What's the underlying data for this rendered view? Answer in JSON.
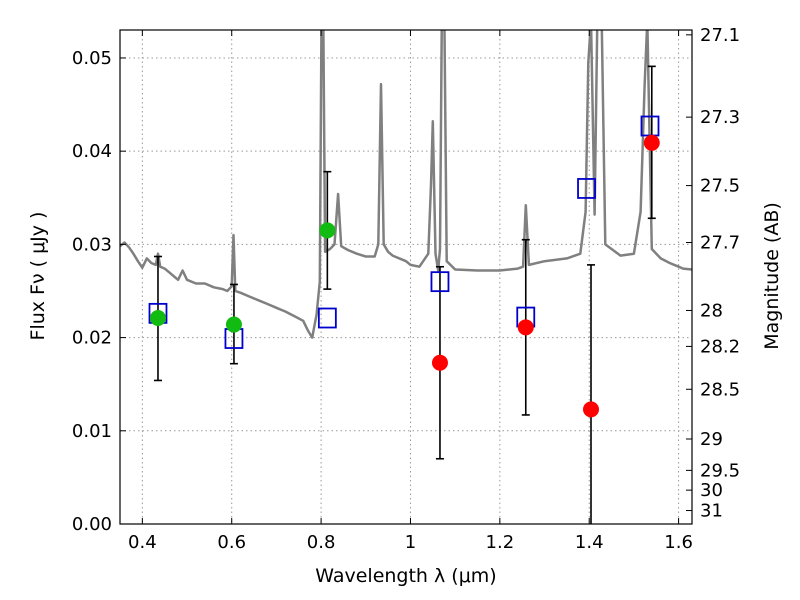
{
  "chart_data": {
    "type": "scatter",
    "xlabel": "Wavelength  λ (μm)",
    "ylabel": "Flux  Fν  ( μJy )",
    "y2label": "Magnitude (AB)",
    "xlim": [
      0.35,
      1.63
    ],
    "ylim": [
      0.0,
      0.053
    ],
    "grid": true,
    "x_ticks": [
      {
        "value": 0.4,
        "label": "0.4"
      },
      {
        "value": 0.6,
        "label": "0.6"
      },
      {
        "value": 0.8,
        "label": "0.8"
      },
      {
        "value": 1.0,
        "label": "1"
      },
      {
        "value": 1.2,
        "label": "1.2"
      },
      {
        "value": 1.4,
        "label": "1.4"
      },
      {
        "value": 1.6,
        "label": "1.6"
      }
    ],
    "y_ticks": [
      {
        "value": 0.0,
        "label": "0.00"
      },
      {
        "value": 0.01,
        "label": "0.01"
      },
      {
        "value": 0.02,
        "label": "0.02"
      },
      {
        "value": 0.03,
        "label": "0.03"
      },
      {
        "value": 0.04,
        "label": "0.04"
      },
      {
        "value": 0.05,
        "label": "0.05"
      }
    ],
    "y2_ticks": [
      {
        "value": 27.1,
        "label": "27.1"
      },
      {
        "value": 27.3,
        "label": "27.3"
      },
      {
        "value": 27.5,
        "label": "27.5"
      },
      {
        "value": 27.7,
        "label": "27.7"
      },
      {
        "value": 28.0,
        "label": "28"
      },
      {
        "value": 28.2,
        "label": "28.2"
      },
      {
        "value": 28.5,
        "label": "28.5"
      },
      {
        "value": 29.0,
        "label": "29"
      },
      {
        "value": 29.5,
        "label": "29.5"
      },
      {
        "value": 30.0,
        "label": "30"
      },
      {
        "value": 31.0,
        "label": "31"
      }
    ],
    "colors": {
      "model": "#808080",
      "green_points": "#11bb11",
      "red_points": "#ff0000",
      "model_boxes": "#0000cc",
      "errorbars": "#000000",
      "grid": "#999999"
    },
    "model_spectrum": [
      [
        0.35,
        0.0298
      ],
      [
        0.36,
        0.0302
      ],
      [
        0.37,
        0.0297
      ],
      [
        0.38,
        0.029
      ],
      [
        0.39,
        0.0282
      ],
      [
        0.4,
        0.0275
      ],
      [
        0.41,
        0.0285
      ],
      [
        0.42,
        0.028
      ],
      [
        0.43,
        0.0278
      ],
      [
        0.435,
        0.029
      ],
      [
        0.44,
        0.0276
      ],
      [
        0.45,
        0.0274
      ],
      [
        0.46,
        0.027
      ],
      [
        0.47,
        0.0266
      ],
      [
        0.48,
        0.0262
      ],
      [
        0.49,
        0.0272
      ],
      [
        0.5,
        0.0262
      ],
      [
        0.52,
        0.0258
      ],
      [
        0.54,
        0.0258
      ],
      [
        0.56,
        0.0254
      ],
      [
        0.58,
        0.0252
      ],
      [
        0.59,
        0.025
      ],
      [
        0.6,
        0.0255
      ],
      [
        0.604,
        0.031
      ],
      [
        0.608,
        0.025
      ],
      [
        0.62,
        0.0248
      ],
      [
        0.64,
        0.0244
      ],
      [
        0.66,
        0.024
      ],
      [
        0.68,
        0.0236
      ],
      [
        0.7,
        0.0232
      ],
      [
        0.72,
        0.0228
      ],
      [
        0.74,
        0.0223
      ],
      [
        0.76,
        0.0218
      ],
      [
        0.77,
        0.0208
      ],
      [
        0.78,
        0.02
      ],
      [
        0.79,
        0.0225
      ],
      [
        0.797,
        0.026
      ],
      [
        0.801,
        0.054
      ],
      [
        0.805,
        0.054
      ],
      [
        0.809,
        0.0292
      ],
      [
        0.82,
        0.0295
      ],
      [
        0.83,
        0.03
      ],
      [
        0.838,
        0.0354
      ],
      [
        0.845,
        0.0298
      ],
      [
        0.86,
        0.0294
      ],
      [
        0.88,
        0.029
      ],
      [
        0.9,
        0.0287
      ],
      [
        0.92,
        0.0287
      ],
      [
        0.928,
        0.03
      ],
      [
        0.934,
        0.0472
      ],
      [
        0.94,
        0.03
      ],
      [
        0.95,
        0.0292
      ],
      [
        0.96,
        0.0288
      ],
      [
        0.98,
        0.0284
      ],
      [
        0.99,
        0.0282
      ],
      [
        1.0,
        0.0278
      ],
      [
        1.02,
        0.0276
      ],
      [
        1.04,
        0.029
      ],
      [
        1.046,
        0.0364
      ],
      [
        1.05,
        0.0432
      ],
      [
        1.056,
        0.029
      ],
      [
        1.062,
        0.0272
      ],
      [
        1.066,
        0.0295
      ],
      [
        1.07,
        0.054
      ],
      [
        1.076,
        0.054
      ],
      [
        1.081,
        0.0282
      ],
      [
        1.1,
        0.0273
      ],
      [
        1.15,
        0.0272
      ],
      [
        1.2,
        0.0272
      ],
      [
        1.24,
        0.0274
      ],
      [
        1.252,
        0.0276
      ],
      [
        1.258,
        0.0342
      ],
      [
        1.265,
        0.0278
      ],
      [
        1.3,
        0.0282
      ],
      [
        1.35,
        0.0285
      ],
      [
        1.38,
        0.029
      ],
      [
        1.392,
        0.0335
      ],
      [
        1.398,
        0.0495
      ],
      [
        1.404,
        0.054
      ],
      [
        1.412,
        0.0332
      ],
      [
        1.418,
        0.054
      ],
      [
        1.428,
        0.054
      ],
      [
        1.436,
        0.03
      ],
      [
        1.47,
        0.0288
      ],
      [
        1.5,
        0.029
      ],
      [
        1.515,
        0.0335
      ],
      [
        1.524,
        0.047
      ],
      [
        1.53,
        0.054
      ],
      [
        1.536,
        0.0392
      ],
      [
        1.54,
        0.0295
      ],
      [
        1.56,
        0.0285
      ],
      [
        1.58,
        0.028
      ],
      [
        1.6,
        0.0276
      ],
      [
        1.61,
        0.0274
      ],
      [
        1.63,
        0.0273
      ]
    ],
    "green_points": [
      {
        "x": 0.435,
        "y": 0.0221,
        "err_low": 0.0154,
        "err_high": 0.0287
      },
      {
        "x": 0.605,
        "y": 0.0214,
        "err_low": 0.0172,
        "err_high": 0.0257
      },
      {
        "x": 0.814,
        "y": 0.0315,
        "err_low": 0.0252,
        "err_high": 0.0378
      }
    ],
    "red_points": [
      {
        "x": 1.066,
        "y": 0.0173,
        "err_low": 0.007,
        "err_high": 0.0276
      },
      {
        "x": 1.258,
        "y": 0.0211,
        "err_low": 0.0117,
        "err_high": 0.0305
      },
      {
        "x": 1.404,
        "y": 0.0123,
        "err_low": 0.0,
        "err_high": 0.0278
      },
      {
        "x": 1.54,
        "y": 0.0409,
        "err_low": 0.0328,
        "err_high": 0.0491
      }
    ],
    "model_boxes": [
      {
        "x": 0.435,
        "y": 0.0226
      },
      {
        "x": 0.605,
        "y": 0.0199
      },
      {
        "x": 0.814,
        "y": 0.0221
      },
      {
        "x": 1.066,
        "y": 0.026
      },
      {
        "x": 1.258,
        "y": 0.0222
      },
      {
        "x": 1.394,
        "y": 0.036
      },
      {
        "x": 1.536,
        "y": 0.0427
      }
    ]
  }
}
